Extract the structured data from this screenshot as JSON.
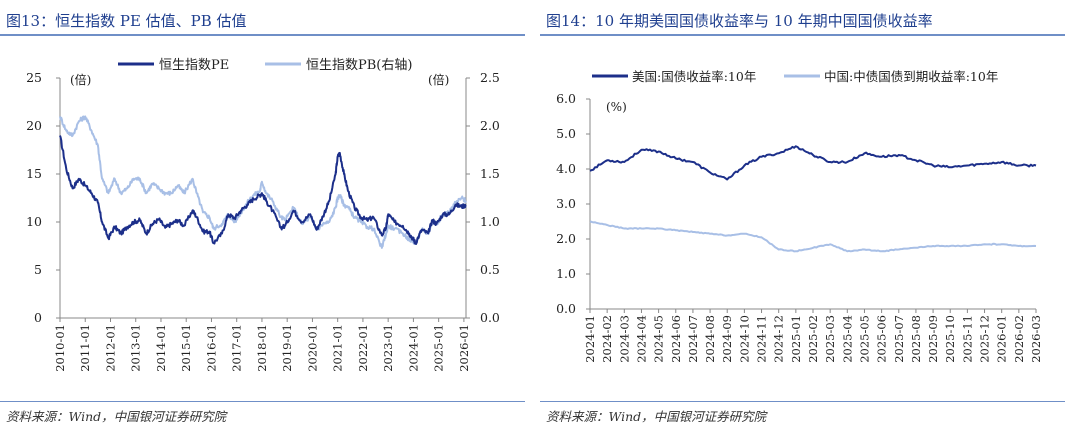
{
  "colors": {
    "dark_series": "#1c2f8a",
    "light_series": "#a8bfe6",
    "title": "#1f3f8f",
    "rule": "#6f8fc7",
    "axis": "#888888"
  },
  "left": {
    "title": "图13：恒生指数 PE 估值、PB 估值",
    "source": "资料来源：Wind，中国银河证券研究院"
  },
  "right": {
    "title": "图14：10 年期美国国债收益率与 10 年期中国国债收益率",
    "source": "资料来源：Wind，中国银河证券研究院"
  },
  "chart_data": [
    {
      "type": "line",
      "title": "恒生指数 PE 估值、PB 估值",
      "unit_left": "(倍)",
      "unit_right": "(倍)",
      "ylim_left": [
        0,
        25
      ],
      "yticks_left": [
        0,
        5,
        10,
        15,
        20,
        25
      ],
      "ylim_right": [
        0,
        2.5
      ],
      "yticks_right": [
        "0.0",
        "0.5",
        "1.0",
        "1.5",
        "2.0",
        "2.5"
      ],
      "x_range": [
        "2010-01",
        "2026-02"
      ],
      "x_ticks": [
        "2010-01",
        "2011-01",
        "2012-01",
        "2013-01",
        "2014-01",
        "2015-01",
        "2016-01",
        "2017-01",
        "2018-01",
        "2019-01",
        "2020-01",
        "2021-01",
        "2022-01",
        "2023-01",
        "2024-01",
        "2025-01",
        "2026-01"
      ],
      "legend_position": "top",
      "grid": false,
      "series": [
        {
          "name": "恒生指数PE",
          "axis": "left",
          "style": "dark",
          "points": [
            [
              "2010-01",
              19.0
            ],
            [
              "2010-04",
              15.5
            ],
            [
              "2010-07",
              13.5
            ],
            [
              "2010-10",
              14.5
            ],
            [
              "2011-01",
              13.8
            ],
            [
              "2011-04",
              13.0
            ],
            [
              "2011-07",
              12.0
            ],
            [
              "2011-09",
              10.0
            ],
            [
              "2011-12",
              8.3
            ],
            [
              "2012-03",
              9.5
            ],
            [
              "2012-06",
              8.8
            ],
            [
              "2012-09",
              9.5
            ],
            [
              "2012-12",
              10.0
            ],
            [
              "2013-03",
              10.2
            ],
            [
              "2013-06",
              8.8
            ],
            [
              "2013-09",
              9.8
            ],
            [
              "2013-12",
              10.3
            ],
            [
              "2014-03",
              9.4
            ],
            [
              "2014-06",
              9.8
            ],
            [
              "2014-09",
              10.2
            ],
            [
              "2014-12",
              9.6
            ],
            [
              "2015-04",
              11.2
            ],
            [
              "2015-06",
              10.5
            ],
            [
              "2015-09",
              9.0
            ],
            [
              "2015-12",
              9.0
            ],
            [
              "2016-02",
              7.8
            ],
            [
              "2016-06",
              8.8
            ],
            [
              "2016-09",
              10.8
            ],
            [
              "2016-12",
              10.4
            ],
            [
              "2017-03",
              11.2
            ],
            [
              "2017-06",
              11.8
            ],
            [
              "2017-09",
              12.4
            ],
            [
              "2017-12",
              12.8
            ],
            [
              "2018-01",
              13.0
            ],
            [
              "2018-03",
              12.2
            ],
            [
              "2018-06",
              11.2
            ],
            [
              "2018-10",
              9.4
            ],
            [
              "2018-12",
              9.6
            ],
            [
              "2019-04",
              11.2
            ],
            [
              "2019-08",
              10.0
            ],
            [
              "2019-12",
              10.8
            ],
            [
              "2020-03",
              9.2
            ],
            [
              "2020-06",
              10.6
            ],
            [
              "2020-09",
              12.2
            ],
            [
              "2020-12",
              15.0
            ],
            [
              "2021-01",
              16.8
            ],
            [
              "2021-02",
              17.2
            ],
            [
              "2021-04",
              15.0
            ],
            [
              "2021-06",
              13.2
            ],
            [
              "2021-09",
              11.5
            ],
            [
              "2021-12",
              10.5
            ],
            [
              "2022-03",
              10.2
            ],
            [
              "2022-06",
              10.5
            ],
            [
              "2022-10",
              8.6
            ],
            [
              "2022-12",
              9.4
            ],
            [
              "2023-01",
              10.8
            ],
            [
              "2023-04",
              10.0
            ],
            [
              "2023-08",
              9.6
            ],
            [
              "2023-11",
              8.8
            ],
            [
              "2024-01",
              8.2
            ],
            [
              "2024-02",
              7.8
            ],
            [
              "2024-05",
              9.2
            ],
            [
              "2024-08",
              8.8
            ],
            [
              "2024-10",
              10.2
            ],
            [
              "2024-12",
              9.8
            ],
            [
              "2025-03",
              10.8
            ],
            [
              "2025-06",
              10.8
            ],
            [
              "2025-09",
              11.8
            ],
            [
              "2025-12",
              11.6
            ],
            [
              "2026-02",
              11.8
            ]
          ]
        },
        {
          "name": "恒生指数PB(右轴)",
          "axis": "right",
          "style": "light",
          "points": [
            [
              "2010-01",
              2.1
            ],
            [
              "2010-04",
              1.95
            ],
            [
              "2010-07",
              1.9
            ],
            [
              "2010-10",
              2.05
            ],
            [
              "2011-01",
              2.1
            ],
            [
              "2011-04",
              1.95
            ],
            [
              "2011-07",
              1.8
            ],
            [
              "2011-09",
              1.45
            ],
            [
              "2011-12",
              1.3
            ],
            [
              "2012-03",
              1.45
            ],
            [
              "2012-06",
              1.3
            ],
            [
              "2012-09",
              1.35
            ],
            [
              "2012-12",
              1.45
            ],
            [
              "2013-03",
              1.45
            ],
            [
              "2013-06",
              1.3
            ],
            [
              "2013-09",
              1.4
            ],
            [
              "2013-12",
              1.35
            ],
            [
              "2014-03",
              1.3
            ],
            [
              "2014-06",
              1.3
            ],
            [
              "2014-09",
              1.38
            ],
            [
              "2014-12",
              1.3
            ],
            [
              "2015-04",
              1.45
            ],
            [
              "2015-06",
              1.3
            ],
            [
              "2015-09",
              1.1
            ],
            [
              "2015-12",
              1.05
            ],
            [
              "2016-02",
              0.93
            ],
            [
              "2016-06",
              0.98
            ],
            [
              "2016-09",
              1.08
            ],
            [
              "2016-12",
              1.0
            ],
            [
              "2017-03",
              1.1
            ],
            [
              "2017-06",
              1.2
            ],
            [
              "2017-09",
              1.28
            ],
            [
              "2017-12",
              1.32
            ],
            [
              "2018-01",
              1.42
            ],
            [
              "2018-03",
              1.3
            ],
            [
              "2018-06",
              1.22
            ],
            [
              "2018-10",
              1.05
            ],
            [
              "2018-12",
              1.02
            ],
            [
              "2019-04",
              1.15
            ],
            [
              "2019-08",
              0.98
            ],
            [
              "2019-12",
              1.05
            ],
            [
              "2020-03",
              0.92
            ],
            [
              "2020-06",
              0.98
            ],
            [
              "2020-09",
              1.0
            ],
            [
              "2020-12",
              1.15
            ],
            [
              "2021-01",
              1.25
            ],
            [
              "2021-02",
              1.28
            ],
            [
              "2021-04",
              1.18
            ],
            [
              "2021-06",
              1.15
            ],
            [
              "2021-09",
              1.05
            ],
            [
              "2021-12",
              1.0
            ],
            [
              "2022-03",
              0.95
            ],
            [
              "2022-06",
              0.93
            ],
            [
              "2022-10",
              0.73
            ],
            [
              "2022-12",
              0.88
            ],
            [
              "2023-01",
              0.96
            ],
            [
              "2023-04",
              0.93
            ],
            [
              "2023-08",
              0.88
            ],
            [
              "2023-11",
              0.82
            ],
            [
              "2024-01",
              0.8
            ],
            [
              "2024-02",
              0.78
            ],
            [
              "2024-05",
              0.92
            ],
            [
              "2024-08",
              0.88
            ],
            [
              "2024-10",
              1.0
            ],
            [
              "2024-12",
              0.98
            ],
            [
              "2025-03",
              1.08
            ],
            [
              "2025-06",
              1.1
            ],
            [
              "2025-09",
              1.2
            ],
            [
              "2025-12",
              1.25
            ],
            [
              "2026-02",
              1.22
            ]
          ]
        }
      ]
    },
    {
      "type": "line",
      "title": "10 年期美国国债收益率与 10 年期中国国债收益率",
      "unit_left": "(%)",
      "ylim": [
        0,
        6
      ],
      "yticks": [
        "0.0",
        "1.0",
        "2.0",
        "3.0",
        "4.0",
        "5.0",
        "6.0"
      ],
      "x_range": [
        "2024-01",
        "2026-03"
      ],
      "x_ticks": [
        "2024-01",
        "2024-02",
        "2024-03",
        "2024-04",
        "2024-05",
        "2024-06",
        "2024-07",
        "2024-08",
        "2024-09",
        "2024-10",
        "2024-11",
        "2024-12",
        "2025-01",
        "2025-02",
        "2025-03",
        "2025-04",
        "2025-05",
        "2025-06",
        "2025-07",
        "2025-08",
        "2025-09",
        "2025-10",
        "2025-11",
        "2025-12",
        "2026-01",
        "2026-02",
        "2026-03"
      ],
      "legend_position": "top",
      "grid": false,
      "series": [
        {
          "name": "美国:国债收益率:10年",
          "style": "dark",
          "points": [
            [
              "2024-01",
              3.95
            ],
            [
              "2024-02",
              4.25
            ],
            [
              "2024-03",
              4.2
            ],
            [
              "2024-04",
              4.55
            ],
            [
              "2024-05",
              4.5
            ],
            [
              "2024-06",
              4.3
            ],
            [
              "2024-07",
              4.2
            ],
            [
              "2024-08",
              3.9
            ],
            [
              "2024-09",
              3.7
            ],
            [
              "2024-10",
              4.1
            ],
            [
              "2024-11",
              4.35
            ],
            [
              "2024-12",
              4.45
            ],
            [
              "2025-01",
              4.65
            ],
            [
              "2025-02",
              4.4
            ],
            [
              "2025-03",
              4.2
            ],
            [
              "2025-04",
              4.2
            ],
            [
              "2025-05",
              4.45
            ],
            [
              "2025-06",
              4.35
            ],
            [
              "2025-07",
              4.4
            ],
            [
              "2025-08",
              4.25
            ],
            [
              "2025-09",
              4.1
            ],
            [
              "2025-10",
              4.05
            ],
            [
              "2025-11",
              4.1
            ],
            [
              "2025-12",
              4.15
            ],
            [
              "2026-01",
              4.2
            ],
            [
              "2026-02",
              4.1
            ],
            [
              "2026-03",
              4.1
            ]
          ]
        },
        {
          "name": "中国:中债国债到期收益率:10年",
          "style": "light",
          "points": [
            [
              "2024-01",
              2.5
            ],
            [
              "2024-02",
              2.4
            ],
            [
              "2024-03",
              2.3
            ],
            [
              "2024-04",
              2.3
            ],
            [
              "2024-05",
              2.3
            ],
            [
              "2024-06",
              2.25
            ],
            [
              "2024-07",
              2.2
            ],
            [
              "2024-08",
              2.15
            ],
            [
              "2024-09",
              2.1
            ],
            [
              "2024-10",
              2.15
            ],
            [
              "2024-11",
              2.05
            ],
            [
              "2024-12",
              1.7
            ],
            [
              "2025-01",
              1.65
            ],
            [
              "2025-02",
              1.75
            ],
            [
              "2025-03",
              1.85
            ],
            [
              "2025-04",
              1.65
            ],
            [
              "2025-05",
              1.7
            ],
            [
              "2025-06",
              1.65
            ],
            [
              "2025-07",
              1.7
            ],
            [
              "2025-08",
              1.75
            ],
            [
              "2025-09",
              1.8
            ],
            [
              "2025-10",
              1.8
            ],
            [
              "2025-11",
              1.8
            ],
            [
              "2025-12",
              1.85
            ],
            [
              "2026-01",
              1.85
            ],
            [
              "2026-02",
              1.8
            ],
            [
              "2026-03",
              1.8
            ]
          ]
        }
      ]
    }
  ]
}
